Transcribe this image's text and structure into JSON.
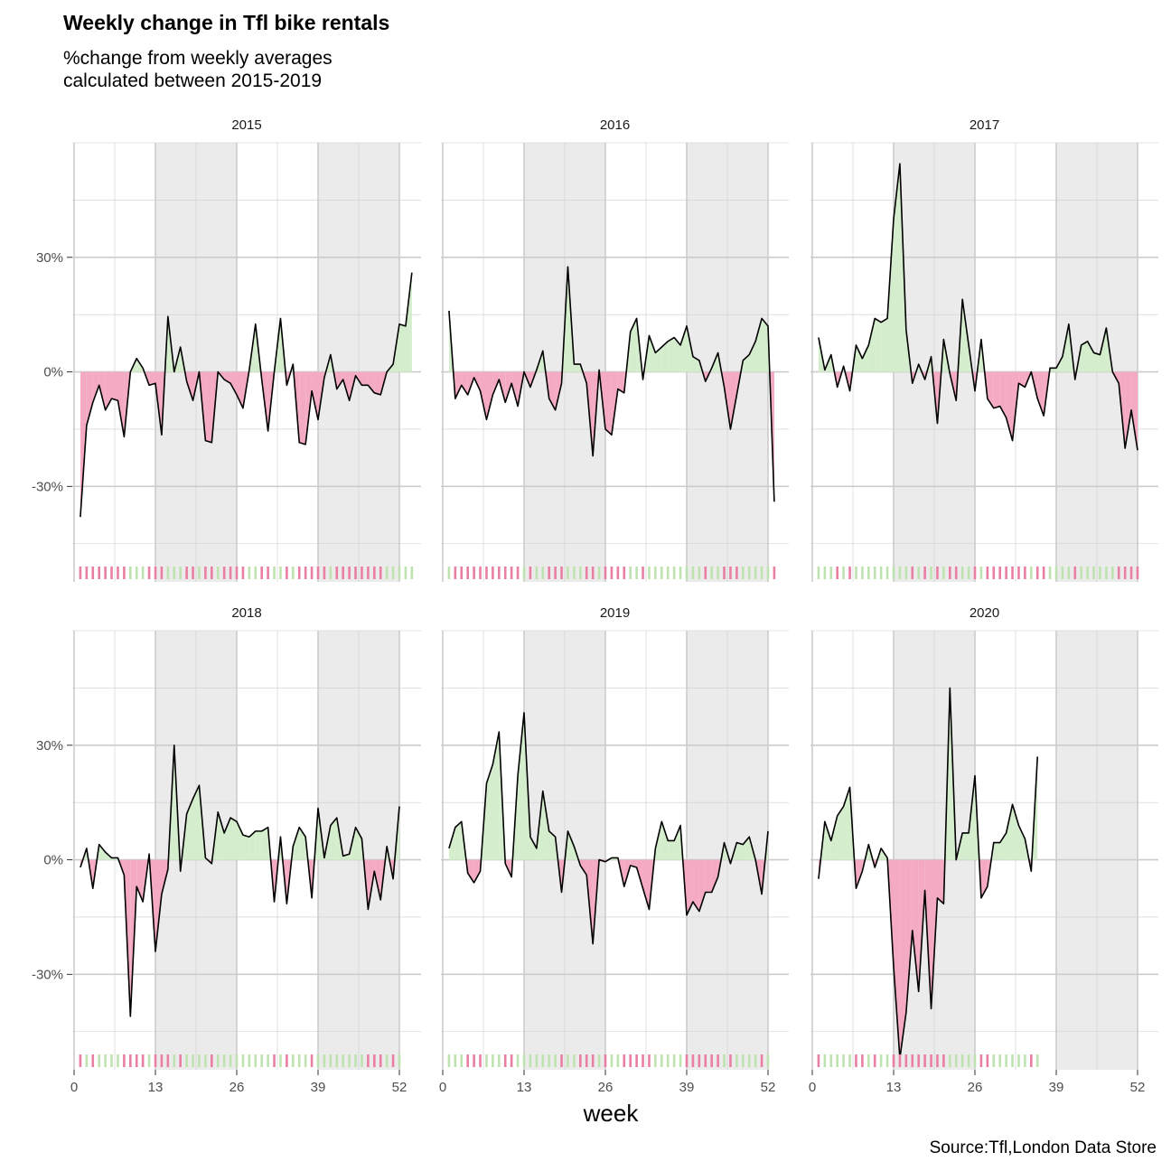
{
  "title": "Weekly change in Tfl bike rentals",
  "subtitle": "%change from weekly averages\ncalculated between 2015-2019",
  "caption": "Source:Tfl,London Data Store",
  "colors": {
    "positive_fill": "#d4edcc",
    "negative_fill": "#f4aac3",
    "positive_rug": "#bfe3b0",
    "negative_rug": "#e97fa2",
    "shade": "#ebebeb",
    "gridline": "#cccccc",
    "line": "#000000"
  },
  "chart_data": {
    "type": "area",
    "xlabel": "week",
    "ylabel": "",
    "x_ticks": [
      0,
      13,
      26,
      39,
      52
    ],
    "y_ticks": [
      -0.3,
      0,
      0.3
    ],
    "y_tick_labels": [
      "-30%",
      "0%",
      "30%"
    ],
    "xlim": [
      0,
      52
    ],
    "ylim": [
      -0.55,
      0.6
    ],
    "shaded_week_ranges": [
      [
        13,
        26
      ],
      [
        39,
        52
      ]
    ],
    "panels": [
      {
        "year": "2015",
        "values": [
          -0.38,
          -0.14,
          -0.08,
          -0.035,
          -0.1,
          -0.07,
          -0.075,
          -0.17,
          0,
          0.035,
          0.01,
          -0.035,
          -0.03,
          -0.165,
          0.145,
          0,
          0.065,
          -0.025,
          -0.075,
          0,
          -0.18,
          -0.185,
          0,
          -0.02,
          -0.03,
          -0.06,
          -0.095,
          0.005,
          0.125,
          -0.02,
          -0.155,
          0,
          0.14,
          -0.035,
          0.02,
          -0.185,
          -0.19,
          -0.05,
          -0.125,
          -0.015,
          0.045,
          -0.045,
          -0.02,
          -0.075,
          -0.01,
          -0.035,
          -0.035,
          -0.055,
          -0.06,
          0,
          0.02,
          0.125,
          0.12,
          0.26
        ]
      },
      {
        "year": "2016",
        "values": [
          0.16,
          -0.07,
          -0.035,
          -0.06,
          -0.015,
          -0.05,
          -0.125,
          -0.06,
          -0.02,
          -0.08,
          -0.03,
          -0.09,
          0,
          -0.04,
          0.005,
          0.055,
          -0.07,
          -0.1,
          -0.03,
          0.275,
          0.02,
          0.02,
          -0.03,
          -0.22,
          0.005,
          -0.15,
          -0.165,
          -0.045,
          -0.055,
          0.105,
          0.14,
          -0.02,
          0.095,
          0.05,
          0.065,
          0.08,
          0.09,
          0.07,
          0.12,
          0.04,
          0.03,
          -0.025,
          0.01,
          0.05,
          -0.04,
          -0.15,
          -0.06,
          0.03,
          0.045,
          0.08,
          0.14,
          0.12,
          -0.34
        ]
      },
      {
        "year": "2017",
        "values": [
          0.09,
          0.005,
          0.045,
          -0.04,
          0.015,
          -0.05,
          0.07,
          0.035,
          0.07,
          0.14,
          0.13,
          0.14,
          0.4,
          0.545,
          0.11,
          -0.03,
          0.02,
          -0.02,
          0.04,
          -0.135,
          0.085,
          -0.005,
          -0.075,
          0.19,
          0.07,
          -0.05,
          0.085,
          -0.07,
          -0.095,
          -0.09,
          -0.12,
          -0.18,
          -0.03,
          -0.04,
          0,
          -0.07,
          -0.115,
          0.01,
          0.01,
          0.04,
          0.125,
          -0.02,
          0.07,
          0.08,
          0.05,
          0.045,
          0.115,
          0,
          -0.03,
          -0.2,
          -0.1,
          -0.205
        ]
      },
      {
        "year": "2018",
        "values": [
          -0.02,
          0.03,
          -0.075,
          0.04,
          0.02,
          0.005,
          0.005,
          -0.04,
          -0.41,
          -0.07,
          -0.11,
          0.015,
          -0.24,
          -0.09,
          -0.025,
          0.3,
          -0.03,
          0.12,
          0.16,
          0.195,
          0.005,
          -0.01,
          0.125,
          0.07,
          0.11,
          0.1,
          0.065,
          0.06,
          0.075,
          0.075,
          0.085,
          -0.11,
          0.06,
          -0.115,
          0.035,
          0.085,
          0.06,
          -0.1,
          0.135,
          0.005,
          0.09,
          0.11,
          0.01,
          0.015,
          0.085,
          0.055,
          -0.13,
          -0.03,
          -0.105,
          0.035,
          -0.05,
          0.14
        ]
      },
      {
        "year": "2019",
        "values": [
          0.03,
          0.085,
          0.1,
          -0.035,
          -0.06,
          -0.03,
          0.2,
          0.25,
          0.335,
          -0.01,
          -0.045,
          0.22,
          0.385,
          0.06,
          0.03,
          0.18,
          0.075,
          0.06,
          -0.085,
          0.075,
          0.035,
          -0.015,
          -0.04,
          -0.22,
          0,
          -0.005,
          0.005,
          0.005,
          -0.07,
          -0.015,
          -0.02,
          -0.075,
          -0.13,
          0.03,
          0.1,
          0.05,
          0.05,
          0.09,
          -0.145,
          -0.11,
          -0.135,
          -0.085,
          -0.085,
          -0.045,
          0.045,
          -0.01,
          0.045,
          0.04,
          0.06,
          0,
          -0.09,
          0.075
        ]
      },
      {
        "year": "2020",
        "values": [
          -0.05,
          0.1,
          0.05,
          0.115,
          0.14,
          0.19,
          -0.075,
          -0.03,
          0.04,
          -0.02,
          0.03,
          0.005,
          -0.28,
          -0.52,
          -0.4,
          -0.185,
          -0.345,
          -0.08,
          -0.39,
          -0.1,
          -0.115,
          0.45,
          0,
          0.07,
          0.07,
          0.22,
          -0.1,
          -0.07,
          0.045,
          0.045,
          0.07,
          0.145,
          0.09,
          0.055,
          -0.03,
          0.27
        ]
      }
    ]
  }
}
